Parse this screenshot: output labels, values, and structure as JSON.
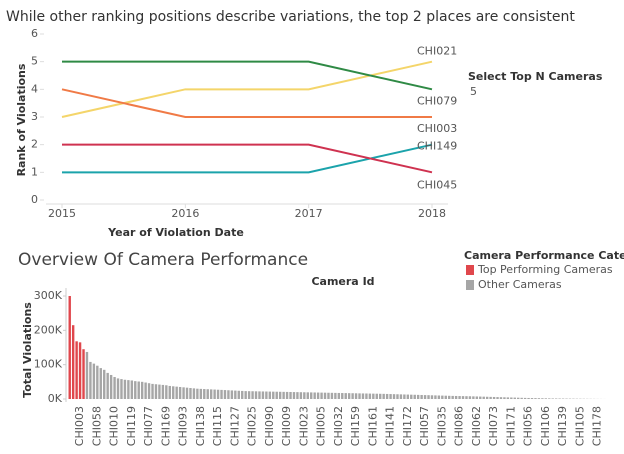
{
  "chart_data": [
    {
      "type": "line",
      "title": "While other ranking positions describe variations, the top 2 places are consistent",
      "x_label": "Year of Violation Date",
      "y_label": "Rank of Violations",
      "x": [
        2015,
        2016,
        2017,
        2018
      ],
      "xlim": [
        2015,
        2018
      ],
      "xticks": [
        2015,
        2016,
        2017,
        2018
      ],
      "ylim": [
        0,
        6
      ],
      "yticks": [
        0,
        1,
        2,
        3,
        4,
        5,
        6
      ],
      "series": [
        {
          "name": "CHI021",
          "color": "#f4d56a",
          "values": [
            3,
            4,
            4,
            5
          ]
        },
        {
          "name": "CHI079",
          "color": "#2f8a45",
          "values": [
            5,
            5,
            5,
            4
          ]
        },
        {
          "name": "CHI003",
          "color": "#f07a46",
          "values": [
            4,
            3,
            3,
            3
          ]
        },
        {
          "name": "CHI149",
          "color": "#1ba3ab",
          "values": [
            1,
            1,
            1,
            2
          ]
        },
        {
          "name": "CHI045",
          "color": "#cf3250",
          "values": [
            2,
            2,
            2,
            1
          ]
        }
      ]
    },
    {
      "type": "bar",
      "title": "Overview Of Camera Performance",
      "x_label": "Camera Id",
      "y_label": "Total Violations",
      "legend_title": "Camera Performance Category",
      "ylim": [
        0,
        300000
      ],
      "yticks": [
        {
          "value": 0,
          "label": "0K"
        },
        {
          "value": 100000,
          "label": "100K"
        },
        {
          "value": 200000,
          "label": "200K"
        },
        {
          "value": 300000,
          "label": "300K"
        }
      ],
      "categories": [
        null,
        null,
        null,
        "CHI003",
        null,
        null,
        null,
        null,
        "CHI058",
        null,
        null,
        null,
        null,
        "CHI010",
        null,
        null,
        null,
        null,
        "CHI119",
        null,
        null,
        null,
        null,
        "CHI077",
        null,
        null,
        null,
        null,
        "CHI169",
        null,
        null,
        null,
        null,
        "CHI093",
        null,
        null,
        null,
        null,
        "CHI138",
        null,
        null,
        null,
        null,
        "CHI115",
        null,
        null,
        null,
        null,
        "CHI127",
        null,
        null,
        null,
        null,
        "CHI025",
        null,
        null,
        null,
        null,
        "CHI090",
        null,
        null,
        null,
        null,
        "CHI009",
        null,
        null,
        null,
        null,
        "CHI023",
        null,
        null,
        null,
        null,
        "CHI005",
        null,
        null,
        null,
        null,
        "CHI032",
        null,
        null,
        null,
        null,
        "CHI159",
        null,
        null,
        null,
        null,
        "CHI161",
        null,
        null,
        null,
        null,
        "CHI141",
        null,
        null,
        null,
        null,
        "CHI172",
        null,
        null,
        null,
        null,
        "CHI057",
        null,
        null,
        null,
        null,
        "CHI035",
        null,
        null,
        null,
        null,
        "CHI086",
        null,
        null,
        null,
        null,
        "CHI062",
        null,
        null,
        null,
        null,
        "CHI073",
        null,
        null,
        null,
        null,
        "CHI171",
        null,
        null,
        null,
        null,
        "CHI056",
        null,
        null,
        null,
        null,
        "CHI106",
        null,
        null,
        null,
        null,
        "CHI139",
        null,
        null,
        null,
        null,
        "CHI105",
        null,
        null,
        null,
        null,
        "CHI178",
        null,
        null
      ],
      "series": [
        {
          "name": "Top Performing Cameras",
          "color": "#e0474c",
          "values": [
            300000,
            215000,
            168000,
            165000,
            145000,
            null,
            null,
            null,
            null,
            null,
            null,
            null,
            null,
            null,
            null,
            null,
            null,
            null,
            null,
            null,
            null,
            null,
            null,
            null,
            null,
            null,
            null,
            null,
            null,
            null,
            null,
            null,
            null,
            null,
            null,
            null,
            null,
            null,
            null,
            null,
            null,
            null,
            null,
            null,
            null,
            null,
            null,
            null,
            null,
            null,
            null,
            null,
            null,
            null,
            null,
            null,
            null,
            null,
            null,
            null,
            null,
            null,
            null,
            null,
            null,
            null,
            null,
            null,
            null,
            null,
            null,
            null,
            null,
            null,
            null,
            null,
            null,
            null,
            null,
            null,
            null,
            null,
            null,
            null,
            null,
            null,
            null,
            null,
            null,
            null,
            null,
            null,
            null,
            null,
            null,
            null,
            null,
            null,
            null,
            null,
            null,
            null,
            null,
            null,
            null,
            null,
            null,
            null,
            null,
            null,
            null,
            null,
            null,
            null,
            null,
            null,
            null,
            null,
            null,
            null,
            null,
            null,
            null,
            null,
            null,
            null,
            null,
            null,
            null,
            null,
            null,
            null,
            null,
            null,
            null,
            null,
            null,
            null,
            null,
            null,
            null,
            null,
            null,
            null,
            null,
            null,
            null,
            null,
            null,
            null,
            null,
            null,
            null,
            null,
            null,
            null
          ]
        },
        {
          "name": "Other Cameras",
          "color": "#a6a6a6",
          "values": [
            null,
            null,
            null,
            null,
            null,
            137000,
            108000,
            103000,
            97000,
            90000,
            85000,
            76000,
            70000,
            64000,
            60000,
            58000,
            56000,
            55000,
            54000,
            52000,
            51000,
            50000,
            48000,
            46000,
            44000,
            43000,
            42000,
            41000,
            40000,
            38000,
            37000,
            36000,
            35000,
            34000,
            33000,
            32000,
            31000,
            30000,
            29500,
            29000,
            28500,
            28000,
            27500,
            27000,
            26500,
            26000,
            25500,
            25000,
            24500,
            24000,
            23500,
            23000,
            22800,
            22600,
            22400,
            22200,
            22000,
            21800,
            21600,
            21400,
            21200,
            21000,
            20800,
            20600,
            20400,
            20200,
            20000,
            19800,
            19600,
            19400,
            19200,
            19000,
            18800,
            18600,
            18400,
            18200,
            18000,
            17800,
            17600,
            17400,
            17200,
            17000,
            16800,
            16600,
            16400,
            16200,
            16000,
            15800,
            15600,
            15400,
            15200,
            15000,
            14700,
            14400,
            14100,
            13800,
            13500,
            13200,
            12900,
            12600,
            12300,
            12000,
            11700,
            11400,
            11100,
            10800,
            10500,
            10200,
            9900,
            9600,
            9300,
            9000,
            8800,
            8600,
            8400,
            8200,
            8000,
            7700,
            7400,
            7100,
            6800,
            6500,
            6200,
            5900,
            5600,
            5300,
            5000,
            4700,
            4400,
            4100,
            3800,
            3500,
            3200,
            3000,
            2800,
            2600,
            2400,
            2200,
            2000,
            1800,
            1600,
            1500,
            1400,
            1300,
            1200,
            1100,
            1000,
            900,
            800,
            700,
            600,
            500,
            400,
            300,
            200,
            100
          ]
        }
      ]
    }
  ],
  "filter": {
    "label": "Select Top N Cameras",
    "value": 5
  }
}
